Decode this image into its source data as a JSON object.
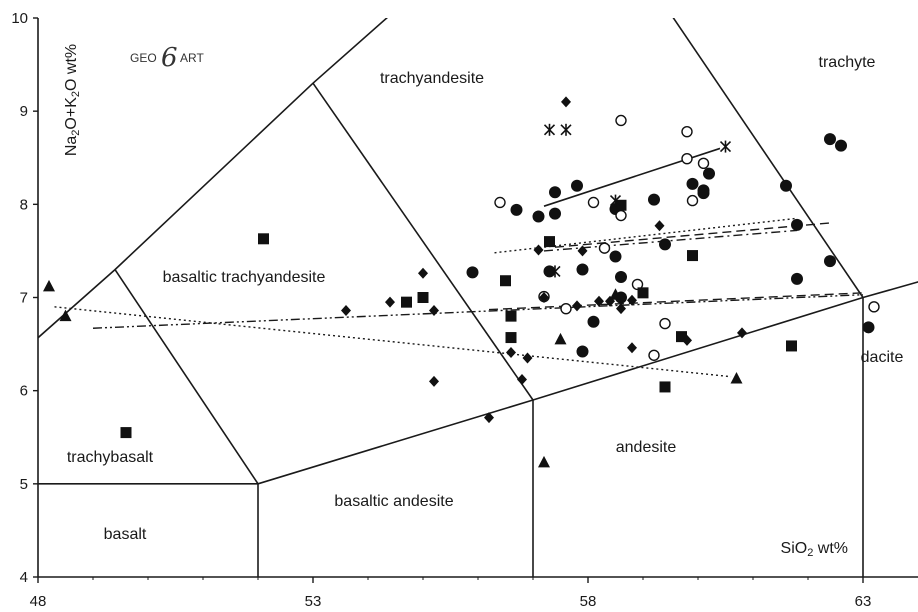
{
  "chart_data": {
    "type": "scatter",
    "title": "",
    "xlabel": "SiO2 wt%",
    "ylabel": "Na2O+K2O wt%",
    "xlim": [
      48,
      64
    ],
    "ylim": [
      4,
      10
    ],
    "x_ticks": [
      48,
      53,
      58,
      63
    ],
    "y_ticks": [
      4,
      5,
      6,
      7,
      8,
      9,
      10
    ],
    "grid": false,
    "legend": "none",
    "logo": {
      "left": "GEO",
      "mark": "6",
      "right": "ART"
    },
    "field_labels": {
      "trachyandesite": "trachyandesite",
      "trachyte": "trachyte",
      "basaltic_trachyandesite": "basaltic trachyandesite",
      "trachybasalt": "trachybasalt",
      "andesite": "andesite",
      "basaltic_andesite": "basaltic andesite",
      "basalt": "basalt",
      "dacite": "dacite"
    },
    "field_boundaries": [
      [
        [
          41,
          7
        ],
        [
          45,
          9.4
        ],
        [
          48.4,
          11.5
        ]
      ],
      [
        [
          45,
          5
        ],
        [
          49.4,
          7.3
        ],
        [
          53,
          9.3
        ],
        [
          57.6,
          11.7
        ]
      ],
      [
        [
          52,
          5
        ],
        [
          57,
          5.9
        ],
        [
          63,
          7
        ],
        [
          69,
          8
        ]
      ],
      [
        [
          52,
          4
        ],
        [
          52,
          5
        ]
      ],
      [
        [
          57,
          4
        ],
        [
          57,
          5.9
        ]
      ],
      [
        [
          63,
          4
        ],
        [
          63,
          7
        ]
      ],
      [
        [
          45,
          5
        ],
        [
          52,
          5
        ]
      ],
      [
        [
          49.4,
          7.3
        ],
        [
          52,
          5
        ]
      ],
      [
        [
          53,
          9.3
        ],
        [
          57,
          5.9
        ]
      ],
      [
        [
          57.6,
          11.7
        ],
        [
          63,
          7
        ]
      ]
    ],
    "series": [
      {
        "marker": "circle-filled",
        "points": [
          [
            57.4,
            8.13
          ],
          [
            57.1,
            7.87
          ],
          [
            56.7,
            7.94
          ],
          [
            57.8,
            8.2
          ],
          [
            57.4,
            7.9
          ],
          [
            58.5,
            7.95
          ],
          [
            59.2,
            8.05
          ],
          [
            59.9,
            8.22
          ],
          [
            60.2,
            8.33
          ],
          [
            60.1,
            8.15
          ],
          [
            60.1,
            8.12
          ],
          [
            61.6,
            8.2
          ],
          [
            62.4,
            8.7
          ],
          [
            62.6,
            8.63
          ],
          [
            61.8,
            7.78
          ],
          [
            55.9,
            7.27
          ],
          [
            57.3,
            7.28
          ],
          [
            57.9,
            7.3
          ],
          [
            58.5,
            7.44
          ],
          [
            59.4,
            7.57
          ],
          [
            58.6,
            7.22
          ],
          [
            58.6,
            7.0
          ],
          [
            58.1,
            6.74
          ],
          [
            57.9,
            6.42
          ],
          [
            61.8,
            7.2
          ],
          [
            62.4,
            7.39
          ],
          [
            63.1,
            6.68
          ]
        ]
      },
      {
        "marker": "circle-open",
        "points": [
          [
            56.4,
            8.02
          ],
          [
            58.1,
            8.02
          ],
          [
            58.6,
            8.9
          ],
          [
            59.8,
            8.78
          ],
          [
            59.8,
            8.49
          ],
          [
            60.1,
            8.44
          ],
          [
            59.9,
            8.04
          ],
          [
            58.6,
            7.88
          ],
          [
            58.3,
            7.53
          ],
          [
            58.9,
            7.14
          ],
          [
            57.2,
            7.01
          ],
          [
            57.6,
            6.88
          ],
          [
            59.4,
            6.72
          ],
          [
            59.2,
            6.38
          ],
          [
            63.2,
            6.9
          ]
        ]
      },
      {
        "marker": "square-filled",
        "points": [
          [
            52.1,
            7.63
          ],
          [
            49.6,
            5.55
          ],
          [
            54.7,
            6.95
          ],
          [
            55.0,
            7.0
          ],
          [
            56.5,
            7.18
          ],
          [
            56.6,
            6.8
          ],
          [
            56.6,
            6.57
          ],
          [
            57.3,
            7.6
          ],
          [
            58.6,
            7.99
          ],
          [
            59.9,
            7.45
          ],
          [
            59.0,
            7.05
          ],
          [
            59.7,
            6.58
          ],
          [
            59.4,
            6.04
          ],
          [
            61.7,
            6.48
          ]
        ]
      },
      {
        "marker": "diamond-filled",
        "points": [
          [
            57.6,
            9.1
          ],
          [
            57.1,
            7.51
          ],
          [
            57.9,
            7.5
          ],
          [
            59.3,
            7.77
          ],
          [
            55.0,
            7.26
          ],
          [
            54.4,
            6.95
          ],
          [
            53.6,
            6.86
          ],
          [
            55.2,
            6.86
          ],
          [
            57.2,
            7.0
          ],
          [
            57.8,
            6.91
          ],
          [
            58.2,
            6.96
          ],
          [
            58.4,
            6.96
          ],
          [
            58.6,
            6.88
          ],
          [
            58.8,
            6.97
          ],
          [
            56.9,
            6.35
          ],
          [
            56.6,
            6.41
          ],
          [
            56.8,
            6.12
          ],
          [
            55.2,
            6.1
          ],
          [
            58.8,
            6.46
          ],
          [
            59.8,
            6.54
          ],
          [
            60.8,
            6.62
          ],
          [
            56.2,
            5.71
          ]
        ]
      },
      {
        "marker": "triangle-filled",
        "points": [
          [
            48.2,
            7.12
          ],
          [
            48.5,
            6.8
          ],
          [
            58.5,
            7.03
          ],
          [
            57.5,
            6.55
          ],
          [
            60.7,
            6.13
          ],
          [
            57.2,
            5.23
          ]
        ]
      },
      {
        "marker": "asterisk",
        "points": [
          [
            57.3,
            8.8
          ],
          [
            57.6,
            8.8
          ],
          [
            58.5,
            8.04
          ],
          [
            57.4,
            7.28
          ],
          [
            60.5,
            8.62
          ]
        ]
      }
    ],
    "trend_lines": [
      {
        "style": "solid",
        "from": [
          57.2,
          7.98
        ],
        "to": [
          60.4,
          8.6
        ]
      },
      {
        "style": "dotted",
        "from": [
          56.3,
          7.48
        ],
        "to": [
          61.8,
          7.85
        ]
      },
      {
        "style": "dashed",
        "from": [
          57.4,
          7.54
        ],
        "to": [
          62.4,
          7.8
        ]
      },
      {
        "style": "dashdot",
        "from": [
          57.2,
          7.5
        ],
        "to": [
          61.8,
          7.72
        ]
      },
      {
        "style": "dashed",
        "from": [
          56.2,
          6.87
        ],
        "to": [
          63.0,
          7.05
        ]
      },
      {
        "style": "dashdotdot",
        "from": [
          49.0,
          6.67
        ],
        "to": [
          63.0,
          7.03
        ]
      },
      {
        "style": "dotted",
        "from": [
          48.3,
          6.9
        ],
        "to": [
          60.6,
          6.15
        ]
      }
    ]
  }
}
